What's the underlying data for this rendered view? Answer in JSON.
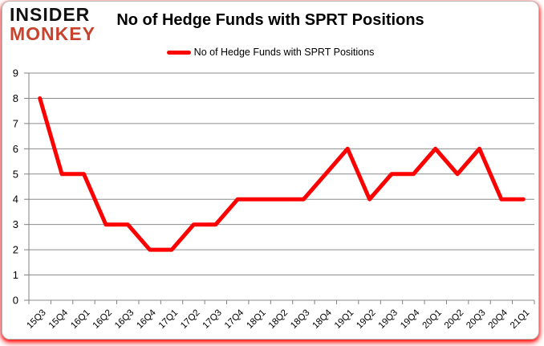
{
  "logo": {
    "line1": "INSIDER",
    "line2": "MONKEY",
    "color_line1": "#111111",
    "color_line2": "#c7432e"
  },
  "header": {
    "title": "No of Hedge Funds with SPRT Positions"
  },
  "legend": {
    "label": "No of Hedge Funds with SPRT Positions",
    "swatch_color": "#ff0000"
  },
  "chart_data": {
    "type": "line",
    "title": "No of Hedge Funds with SPRT Positions",
    "categories": [
      "15Q3",
      "15Q4",
      "16Q1",
      "16Q2",
      "16Q3",
      "16Q4",
      "17Q1",
      "17Q2",
      "17Q3",
      "17Q4",
      "18Q1",
      "18Q2",
      "18Q3",
      "18Q4",
      "19Q1",
      "19Q2",
      "19Q3",
      "19Q4",
      "20Q1",
      "20Q2",
      "20Q3",
      "20Q4",
      "21Q1"
    ],
    "series": [
      {
        "name": "No of Hedge Funds with SPRT Positions",
        "color": "#ff0000",
        "values": [
          8,
          5,
          5,
          3,
          3,
          2,
          2,
          3,
          3,
          4,
          4,
          4,
          4,
          5,
          6,
          4,
          5,
          5,
          6,
          5,
          6,
          4,
          4
        ]
      }
    ],
    "xlabel": "",
    "ylabel": "",
    "ylim": [
      0,
      9
    ],
    "ytick_step": 1,
    "grid": true,
    "legend_position": "top-center",
    "grid_color": "#8c8c8c",
    "axis_color": "#808080",
    "tick_label_color": "#000000"
  }
}
